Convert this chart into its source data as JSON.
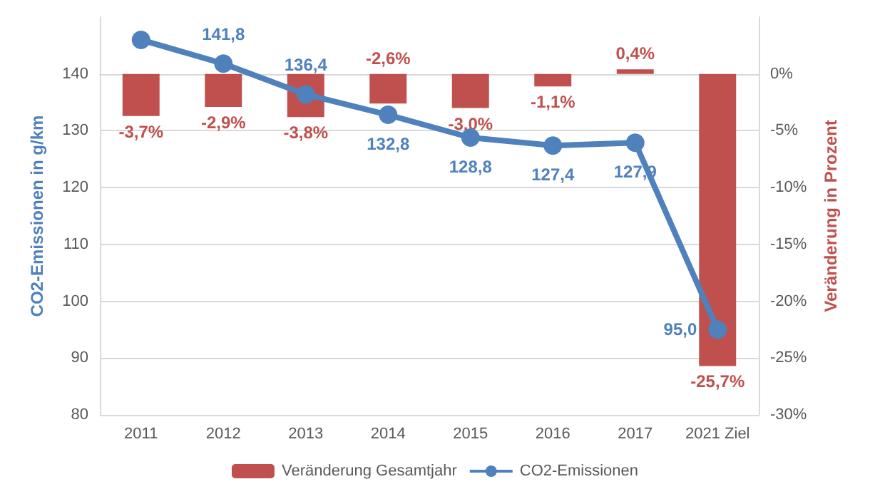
{
  "chart_data": {
    "type": "bar",
    "ylabel": "CO2-Emissionen in g/km",
    "y2label": "Veränderung in Prozent",
    "categories": [
      "2011",
      "2012",
      "2013",
      "2014",
      "2015",
      "2016",
      "2017",
      "2021 Ziel"
    ],
    "series": [
      {
        "name": "Veränderung Gesamtjahr",
        "axis": "y2",
        "color": "#c0504d",
        "values": [
          -3.7,
          -2.9,
          -3.8,
          -2.6,
          -3.0,
          -1.1,
          0.4,
          -25.7
        ],
        "value_labels": [
          "-3,7%",
          "-2,9%",
          "-3,8%",
          "-2,6%",
          "-3,0%",
          "-1,1%",
          "0,4%",
          "-25,7%"
        ]
      },
      {
        "name": "CO2-Emissionen",
        "type": "line",
        "color": "#4f81bd",
        "marker": "circle",
        "values": [
          146,
          141.8,
          136.4,
          132.8,
          128.8,
          127.4,
          127.9,
          95.0
        ],
        "value_labels": [
          null,
          "141,8",
          "136,4",
          "132,8",
          "128,8",
          "127,4",
          "127,9",
          "95,0"
        ]
      }
    ],
    "ylim": [
      80,
      150
    ],
    "yticks": [
      80,
      90,
      100,
      110,
      120,
      130,
      140
    ],
    "y2lim": [
      -30,
      5
    ],
    "y2ticks": [
      {
        "value": -30,
        "label": "-30%"
      },
      {
        "value": -25,
        "label": "-25%"
      },
      {
        "value": -20,
        "label": "-20%"
      },
      {
        "value": -15,
        "label": "-15%"
      },
      {
        "value": -10,
        "label": "-10%"
      },
      {
        "value": -5,
        "label": "-5%"
      },
      {
        "value": 0,
        "label": "0%"
      }
    ],
    "grid": "y",
    "legend": "bottom"
  }
}
